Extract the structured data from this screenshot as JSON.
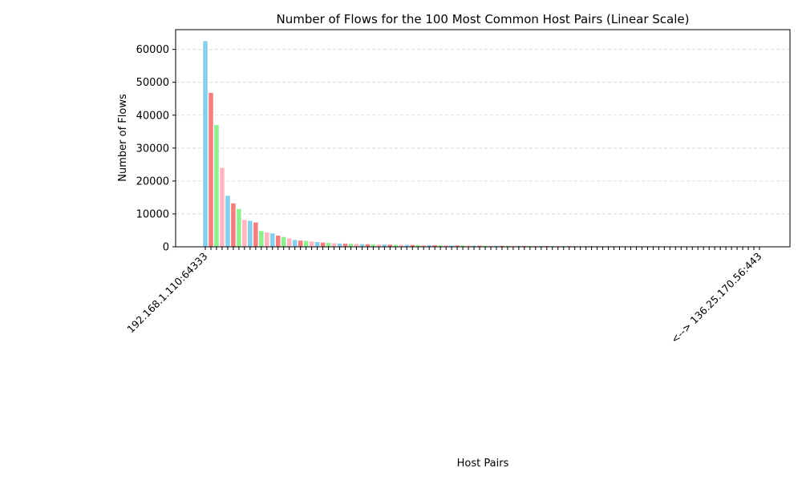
{
  "chart_data": {
    "type": "bar",
    "title": "Number of Flows for the 100 Most Common Host Pairs (Linear Scale)",
    "xlabel": "Host Pairs",
    "ylabel": "Number of Flows",
    "ylim": [
      0,
      66000
    ],
    "yticks": [
      0,
      10000,
      20000,
      30000,
      40000,
      50000,
      60000
    ],
    "grid": "y-dashed",
    "colors": [
      "#87ceeb",
      "#f08080",
      "#90ee90",
      "#ffb6c1"
    ],
    "category_label_visible_head": "192.168.1.110:64333",
    "category_label_visible_tail": "<--> 136.25.170.56:443",
    "values": [
      62500,
      46800,
      37000,
      24000,
      15500,
      13200,
      11500,
      8200,
      7900,
      7400,
      4800,
      4400,
      4100,
      3400,
      3000,
      2600,
      2100,
      1900,
      1800,
      1600,
      1450,
      1300,
      1200,
      1100,
      1000,
      950,
      900,
      860,
      820,
      780,
      750,
      720,
      690,
      660,
      630,
      600,
      580,
      560,
      540,
      520,
      500,
      480,
      460,
      445,
      430,
      415,
      400,
      385,
      370,
      355,
      340,
      330,
      320,
      310,
      300,
      290,
      280,
      272,
      264,
      256,
      248,
      240,
      233,
      226,
      220,
      214,
      208,
      202,
      196,
      190,
      185,
      180,
      175,
      170,
      165,
      160,
      156,
      152,
      148,
      144,
      140,
      136,
      132,
      128,
      124,
      120,
      117,
      114,
      111,
      108,
      105,
      102,
      99,
      96,
      93,
      90,
      88,
      86,
      84,
      82
    ]
  }
}
